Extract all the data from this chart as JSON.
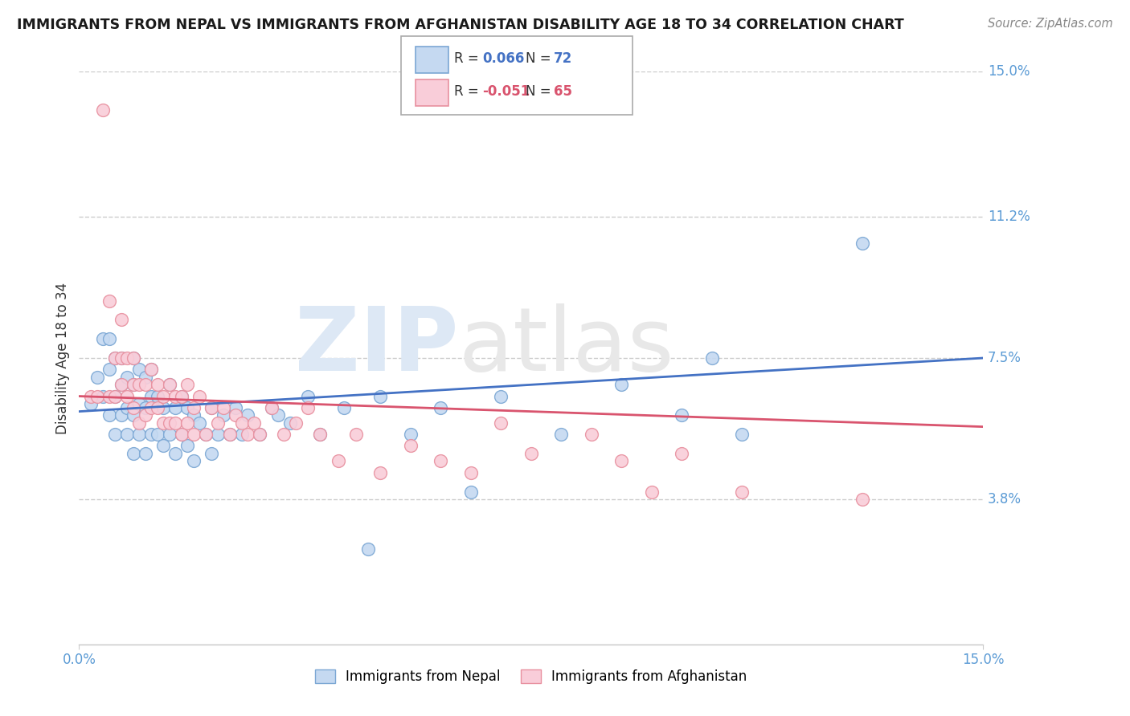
{
  "title": "IMMIGRANTS FROM NEPAL VS IMMIGRANTS FROM AFGHANISTAN DISABILITY AGE 18 TO 34 CORRELATION CHART",
  "source": "Source: ZipAtlas.com",
  "ylabel": "Disability Age 18 to 34",
  "xmin": 0.0,
  "xmax": 0.15,
  "ymin": 0.0,
  "ymax": 0.15,
  "yticks": [
    0.038,
    0.075,
    0.112,
    0.15
  ],
  "ytick_labels": [
    "3.8%",
    "7.5%",
    "11.2%",
    "15.0%"
  ],
  "xticks": [
    0.0,
    0.15
  ],
  "xtick_labels": [
    "0.0%",
    "15.0%"
  ],
  "nepal_R": 0.066,
  "nepal_N": 72,
  "afghanistan_R": -0.051,
  "afghanistan_N": 65,
  "nepal_color": "#c5d9f1",
  "nepal_edge_color": "#7ba7d4",
  "nepal_line_color": "#4472c4",
  "afghanistan_color": "#f9cdd9",
  "afghanistan_edge_color": "#e8909f",
  "afghanistan_line_color": "#d9546e",
  "nepal_scatter_x": [
    0.002,
    0.003,
    0.004,
    0.004,
    0.005,
    0.005,
    0.005,
    0.006,
    0.006,
    0.006,
    0.007,
    0.007,
    0.007,
    0.008,
    0.008,
    0.008,
    0.009,
    0.009,
    0.009,
    0.009,
    0.01,
    0.01,
    0.01,
    0.011,
    0.011,
    0.011,
    0.012,
    0.012,
    0.012,
    0.013,
    0.013,
    0.014,
    0.014,
    0.015,
    0.015,
    0.016,
    0.016,
    0.017,
    0.017,
    0.018,
    0.018,
    0.019,
    0.019,
    0.02,
    0.021,
    0.022,
    0.022,
    0.023,
    0.024,
    0.025,
    0.026,
    0.027,
    0.028,
    0.03,
    0.032,
    0.033,
    0.035,
    0.038,
    0.04,
    0.044,
    0.048,
    0.05,
    0.055,
    0.06,
    0.065,
    0.07,
    0.08,
    0.09,
    0.1,
    0.105,
    0.11,
    0.13
  ],
  "nepal_scatter_y": [
    0.063,
    0.07,
    0.065,
    0.08,
    0.06,
    0.072,
    0.08,
    0.055,
    0.065,
    0.075,
    0.06,
    0.068,
    0.075,
    0.055,
    0.062,
    0.07,
    0.05,
    0.06,
    0.068,
    0.075,
    0.055,
    0.063,
    0.072,
    0.05,
    0.062,
    0.07,
    0.055,
    0.065,
    0.072,
    0.055,
    0.065,
    0.052,
    0.062,
    0.055,
    0.068,
    0.05,
    0.062,
    0.055,
    0.065,
    0.052,
    0.062,
    0.048,
    0.06,
    0.058,
    0.055,
    0.05,
    0.062,
    0.055,
    0.06,
    0.055,
    0.062,
    0.055,
    0.06,
    0.055,
    0.062,
    0.06,
    0.058,
    0.065,
    0.055,
    0.062,
    0.025,
    0.065,
    0.055,
    0.062,
    0.04,
    0.065,
    0.055,
    0.068,
    0.06,
    0.075,
    0.055,
    0.105
  ],
  "afghanistan_scatter_x": [
    0.002,
    0.003,
    0.004,
    0.005,
    0.005,
    0.006,
    0.006,
    0.007,
    0.007,
    0.007,
    0.008,
    0.008,
    0.009,
    0.009,
    0.009,
    0.01,
    0.01,
    0.011,
    0.011,
    0.012,
    0.012,
    0.013,
    0.013,
    0.014,
    0.014,
    0.015,
    0.015,
    0.016,
    0.016,
    0.017,
    0.017,
    0.018,
    0.018,
    0.019,
    0.019,
    0.02,
    0.021,
    0.022,
    0.023,
    0.024,
    0.025,
    0.026,
    0.027,
    0.028,
    0.029,
    0.03,
    0.032,
    0.034,
    0.036,
    0.038,
    0.04,
    0.043,
    0.046,
    0.05,
    0.055,
    0.06,
    0.065,
    0.07,
    0.075,
    0.085,
    0.09,
    0.095,
    0.1,
    0.11,
    0.13
  ],
  "afghanistan_scatter_y": [
    0.065,
    0.065,
    0.14,
    0.065,
    0.09,
    0.065,
    0.075,
    0.068,
    0.075,
    0.085,
    0.065,
    0.075,
    0.062,
    0.068,
    0.075,
    0.058,
    0.068,
    0.06,
    0.068,
    0.062,
    0.072,
    0.062,
    0.068,
    0.058,
    0.065,
    0.058,
    0.068,
    0.058,
    0.065,
    0.055,
    0.065,
    0.058,
    0.068,
    0.055,
    0.062,
    0.065,
    0.055,
    0.062,
    0.058,
    0.062,
    0.055,
    0.06,
    0.058,
    0.055,
    0.058,
    0.055,
    0.062,
    0.055,
    0.058,
    0.062,
    0.055,
    0.048,
    0.055,
    0.045,
    0.052,
    0.048,
    0.045,
    0.058,
    0.05,
    0.055,
    0.048,
    0.04,
    0.05,
    0.04,
    0.038
  ],
  "nepal_trend_x": [
    0.0,
    0.15
  ],
  "nepal_trend_y": [
    0.061,
    0.075
  ],
  "afghanistan_trend_x": [
    0.0,
    0.15
  ],
  "afghanistan_trend_y": [
    0.065,
    0.057
  ],
  "watermark_zip": "ZIP",
  "watermark_atlas": "atlas",
  "background_color": "#ffffff",
  "grid_color": "#cccccc",
  "tick_color": "#5b9bd5",
  "title_color": "#1a1a1a",
  "ylabel_color": "#333333",
  "source_color": "#888888"
}
